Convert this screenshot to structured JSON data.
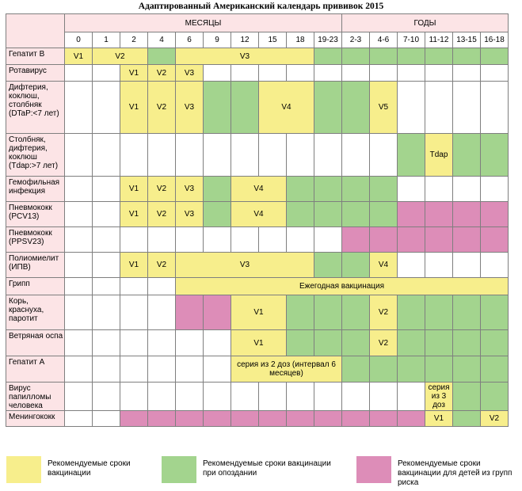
{
  "title": "Адаптированный Американский календарь прививок 2015",
  "header": {
    "months": "МЕСЯЦЫ",
    "years": "ГОДЫ"
  },
  "ages": [
    "0",
    "1",
    "2",
    "4",
    "6",
    "9",
    "12",
    "15",
    "18",
    "19-23",
    "2-3",
    "4-6",
    "7-10",
    "11-12",
    "13-15",
    "16-18"
  ],
  "rows": [
    {
      "label": "Гепатит В",
      "cells": [
        {
          "t": "V1",
          "c": "y",
          "s": 1
        },
        {
          "t": "V2",
          "c": "y",
          "s": 2
        },
        {
          "t": "",
          "c": "g",
          "s": 1
        },
        {
          "t": "V3",
          "c": "y",
          "s": 5
        },
        {
          "t": "",
          "c": "g",
          "s": 1
        },
        {
          "t": "",
          "c": "g",
          "s": 1
        },
        {
          "t": "",
          "c": "g",
          "s": 1
        },
        {
          "t": "",
          "c": "g",
          "s": 1
        },
        {
          "t": "",
          "c": "g",
          "s": 1
        },
        {
          "t": "",
          "c": "g",
          "s": 1
        },
        {
          "t": "",
          "c": "g",
          "s": 1
        }
      ]
    },
    {
      "label": "Ротавирус",
      "cells": [
        {
          "t": "",
          "c": "w",
          "s": 1
        },
        {
          "t": "",
          "c": "w",
          "s": 1
        },
        {
          "t": "V1",
          "c": "y",
          "s": 1
        },
        {
          "t": "V2",
          "c": "y",
          "s": 1
        },
        {
          "t": "V3",
          "c": "y",
          "s": 1
        },
        {
          "t": "",
          "c": "w",
          "s": 1
        },
        {
          "t": "",
          "c": "w",
          "s": 1
        },
        {
          "t": "",
          "c": "w",
          "s": 1
        },
        {
          "t": "",
          "c": "w",
          "s": 1
        },
        {
          "t": "",
          "c": "w",
          "s": 1
        },
        {
          "t": "",
          "c": "w",
          "s": 1
        },
        {
          "t": "",
          "c": "w",
          "s": 1
        },
        {
          "t": "",
          "c": "w",
          "s": 1
        },
        {
          "t": "",
          "c": "w",
          "s": 1
        },
        {
          "t": "",
          "c": "w",
          "s": 1
        },
        {
          "t": "",
          "c": "w",
          "s": 1
        }
      ]
    },
    {
      "label": "Дифтерия, коклюш, столбняк (DTaP:<7 лет)",
      "cells": [
        {
          "t": "",
          "c": "w",
          "s": 1
        },
        {
          "t": "",
          "c": "w",
          "s": 1
        },
        {
          "t": "V1",
          "c": "y",
          "s": 1
        },
        {
          "t": "V2",
          "c": "y",
          "s": 1
        },
        {
          "t": "V3",
          "c": "y",
          "s": 1
        },
        {
          "t": "",
          "c": "g",
          "s": 1
        },
        {
          "t": "",
          "c": "g",
          "s": 1
        },
        {
          "t": "V4",
          "c": "y",
          "s": 2
        },
        {
          "t": "",
          "c": "g",
          "s": 1
        },
        {
          "t": "",
          "c": "g",
          "s": 1
        },
        {
          "t": "V5",
          "c": "y",
          "s": 1
        },
        {
          "t": "",
          "c": "w",
          "s": 1
        },
        {
          "t": "",
          "c": "w",
          "s": 1
        },
        {
          "t": "",
          "c": "w",
          "s": 1
        },
        {
          "t": "",
          "c": "w",
          "s": 1
        }
      ]
    },
    {
      "label": "Столбняк, дифтерия, коклюш (Tdap:>7 лет)",
      "cells": [
        {
          "t": "",
          "c": "w",
          "s": 1
        },
        {
          "t": "",
          "c": "w",
          "s": 1
        },
        {
          "t": "",
          "c": "w",
          "s": 1
        },
        {
          "t": "",
          "c": "w",
          "s": 1
        },
        {
          "t": "",
          "c": "w",
          "s": 1
        },
        {
          "t": "",
          "c": "w",
          "s": 1
        },
        {
          "t": "",
          "c": "w",
          "s": 1
        },
        {
          "t": "",
          "c": "w",
          "s": 1
        },
        {
          "t": "",
          "c": "w",
          "s": 1
        },
        {
          "t": "",
          "c": "w",
          "s": 1
        },
        {
          "t": "",
          "c": "w",
          "s": 1
        },
        {
          "t": "",
          "c": "w",
          "s": 1
        },
        {
          "t": "",
          "c": "g",
          "s": 1
        },
        {
          "t": "Tdap",
          "c": "y",
          "s": 1
        },
        {
          "t": "",
          "c": "g",
          "s": 1
        },
        {
          "t": "",
          "c": "g",
          "s": 1
        }
      ]
    },
    {
      "label": "Гемофильная инфекция",
      "cells": [
        {
          "t": "",
          "c": "w",
          "s": 1
        },
        {
          "t": "",
          "c": "w",
          "s": 1
        },
        {
          "t": "V1",
          "c": "y",
          "s": 1
        },
        {
          "t": "V2",
          "c": "y",
          "s": 1
        },
        {
          "t": "V3",
          "c": "y",
          "s": 1
        },
        {
          "t": "",
          "c": "g",
          "s": 1
        },
        {
          "t": "V4",
          "c": "y",
          "s": 2
        },
        {
          "t": "",
          "c": "g",
          "s": 1
        },
        {
          "t": "",
          "c": "g",
          "s": 1
        },
        {
          "t": "",
          "c": "g",
          "s": 1
        },
        {
          "t": "",
          "c": "g",
          "s": 1
        },
        {
          "t": "",
          "c": "w",
          "s": 1
        },
        {
          "t": "",
          "c": "w",
          "s": 1
        },
        {
          "t": "",
          "c": "w",
          "s": 1
        },
        {
          "t": "",
          "c": "w",
          "s": 1
        }
      ]
    },
    {
      "label": "Пневмококк (PCV13)",
      "cells": [
        {
          "t": "",
          "c": "w",
          "s": 1
        },
        {
          "t": "",
          "c": "w",
          "s": 1
        },
        {
          "t": "V1",
          "c": "y",
          "s": 1
        },
        {
          "t": "V2",
          "c": "y",
          "s": 1
        },
        {
          "t": "V3",
          "c": "y",
          "s": 1
        },
        {
          "t": "",
          "c": "g",
          "s": 1
        },
        {
          "t": "V4",
          "c": "y",
          "s": 2
        },
        {
          "t": "",
          "c": "g",
          "s": 1
        },
        {
          "t": "",
          "c": "g",
          "s": 1
        },
        {
          "t": "",
          "c": "g",
          "s": 1
        },
        {
          "t": "",
          "c": "g",
          "s": 1
        },
        {
          "t": "",
          "c": "p",
          "s": 1
        },
        {
          "t": "",
          "c": "p",
          "s": 1
        },
        {
          "t": "",
          "c": "p",
          "s": 1
        },
        {
          "t": "",
          "c": "p",
          "s": 1
        }
      ]
    },
    {
      "label": "Пневмококк (PPSV23)",
      "cells": [
        {
          "t": "",
          "c": "w",
          "s": 1
        },
        {
          "t": "",
          "c": "w",
          "s": 1
        },
        {
          "t": "",
          "c": "w",
          "s": 1
        },
        {
          "t": "",
          "c": "w",
          "s": 1
        },
        {
          "t": "",
          "c": "w",
          "s": 1
        },
        {
          "t": "",
          "c": "w",
          "s": 1
        },
        {
          "t": "",
          "c": "w",
          "s": 1
        },
        {
          "t": "",
          "c": "w",
          "s": 1
        },
        {
          "t": "",
          "c": "w",
          "s": 1
        },
        {
          "t": "",
          "c": "w",
          "s": 1
        },
        {
          "t": "",
          "c": "p",
          "s": 1
        },
        {
          "t": "",
          "c": "p",
          "s": 1
        },
        {
          "t": "",
          "c": "p",
          "s": 1
        },
        {
          "t": "",
          "c": "p",
          "s": 1
        },
        {
          "t": "",
          "c": "p",
          "s": 1
        },
        {
          "t": "",
          "c": "p",
          "s": 1
        }
      ]
    },
    {
      "label": "Полиомиелит (ИПВ)",
      "cells": [
        {
          "t": "",
          "c": "w",
          "s": 1
        },
        {
          "t": "",
          "c": "w",
          "s": 1
        },
        {
          "t": "V1",
          "c": "y",
          "s": 1
        },
        {
          "t": "V2",
          "c": "y",
          "s": 1
        },
        {
          "t": "V3",
          "c": "y",
          "s": 5
        },
        {
          "t": "",
          "c": "g",
          "s": 1
        },
        {
          "t": "",
          "c": "g",
          "s": 1
        },
        {
          "t": "V4",
          "c": "y",
          "s": 1
        },
        {
          "t": "",
          "c": "w",
          "s": 1
        },
        {
          "t": "",
          "c": "w",
          "s": 1
        },
        {
          "t": "",
          "c": "w",
          "s": 1
        },
        {
          "t": "",
          "c": "w",
          "s": 1
        }
      ]
    },
    {
      "label": "Грипп",
      "cells": [
        {
          "t": "",
          "c": "w",
          "s": 1
        },
        {
          "t": "",
          "c": "w",
          "s": 1
        },
        {
          "t": "",
          "c": "w",
          "s": 1
        },
        {
          "t": "",
          "c": "w",
          "s": 1
        },
        {
          "t": "Ежегодная вакцинация",
          "c": "y",
          "s": 12
        }
      ]
    },
    {
      "label": "Корь, краснуха, паротит",
      "cells": [
        {
          "t": "",
          "c": "w",
          "s": 1
        },
        {
          "t": "",
          "c": "w",
          "s": 1
        },
        {
          "t": "",
          "c": "w",
          "s": 1
        },
        {
          "t": "",
          "c": "w",
          "s": 1
        },
        {
          "t": "",
          "c": "p",
          "s": 1
        },
        {
          "t": "",
          "c": "p",
          "s": 1
        },
        {
          "t": "V1",
          "c": "y",
          "s": 2
        },
        {
          "t": "",
          "c": "g",
          "s": 1
        },
        {
          "t": "",
          "c": "g",
          "s": 1
        },
        {
          "t": "",
          "c": "g",
          "s": 1
        },
        {
          "t": "V2",
          "c": "y",
          "s": 1
        },
        {
          "t": "",
          "c": "g",
          "s": 1
        },
        {
          "t": "",
          "c": "g",
          "s": 1
        },
        {
          "t": "",
          "c": "g",
          "s": 1
        },
        {
          "t": "",
          "c": "g",
          "s": 1
        }
      ]
    },
    {
      "label": "Ветряная оспа",
      "cells": [
        {
          "t": "",
          "c": "w",
          "s": 1
        },
        {
          "t": "",
          "c": "w",
          "s": 1
        },
        {
          "t": "",
          "c": "w",
          "s": 1
        },
        {
          "t": "",
          "c": "w",
          "s": 1
        },
        {
          "t": "",
          "c": "w",
          "s": 1
        },
        {
          "t": "",
          "c": "w",
          "s": 1
        },
        {
          "t": "V1",
          "c": "y",
          "s": 2
        },
        {
          "t": "",
          "c": "g",
          "s": 1
        },
        {
          "t": "",
          "c": "g",
          "s": 1
        },
        {
          "t": "",
          "c": "g",
          "s": 1
        },
        {
          "t": "V2",
          "c": "y",
          "s": 1
        },
        {
          "t": "",
          "c": "g",
          "s": 1
        },
        {
          "t": "",
          "c": "g",
          "s": 1
        },
        {
          "t": "",
          "c": "g",
          "s": 1
        },
        {
          "t": "",
          "c": "g",
          "s": 1
        }
      ]
    },
    {
      "label": "Гепатит А",
      "cells": [
        {
          "t": "",
          "c": "w",
          "s": 1
        },
        {
          "t": "",
          "c": "w",
          "s": 1
        },
        {
          "t": "",
          "c": "w",
          "s": 1
        },
        {
          "t": "",
          "c": "w",
          "s": 1
        },
        {
          "t": "",
          "c": "w",
          "s": 1
        },
        {
          "t": "",
          "c": "w",
          "s": 1
        },
        {
          "t": "серия из 2 доз (интервал 6 месяцев)",
          "c": "y",
          "s": 4
        },
        {
          "t": "",
          "c": "g",
          "s": 1
        },
        {
          "t": "",
          "c": "g",
          "s": 1
        },
        {
          "t": "",
          "c": "g",
          "s": 1
        },
        {
          "t": "",
          "c": "g",
          "s": 1
        },
        {
          "t": "",
          "c": "g",
          "s": 1
        },
        {
          "t": "",
          "c": "g",
          "s": 1
        }
      ]
    },
    {
      "label": "Вирус папилломы человека",
      "cells": [
        {
          "t": "",
          "c": "w",
          "s": 1
        },
        {
          "t": "",
          "c": "w",
          "s": 1
        },
        {
          "t": "",
          "c": "w",
          "s": 1
        },
        {
          "t": "",
          "c": "w",
          "s": 1
        },
        {
          "t": "",
          "c": "w",
          "s": 1
        },
        {
          "t": "",
          "c": "w",
          "s": 1
        },
        {
          "t": "",
          "c": "w",
          "s": 1
        },
        {
          "t": "",
          "c": "w",
          "s": 1
        },
        {
          "t": "",
          "c": "w",
          "s": 1
        },
        {
          "t": "",
          "c": "w",
          "s": 1
        },
        {
          "t": "",
          "c": "w",
          "s": 1
        },
        {
          "t": "",
          "c": "w",
          "s": 1
        },
        {
          "t": "",
          "c": "w",
          "s": 1
        },
        {
          "t": "серия из 3 доз",
          "c": "y",
          "s": 1
        },
        {
          "t": "",
          "c": "g",
          "s": 1
        },
        {
          "t": "",
          "c": "g",
          "s": 1
        }
      ]
    },
    {
      "label": "Менингококк",
      "cells": [
        {
          "t": "",
          "c": "w",
          "s": 1
        },
        {
          "t": "",
          "c": "w",
          "s": 1
        },
        {
          "t": "",
          "c": "p",
          "s": 1
        },
        {
          "t": "",
          "c": "p",
          "s": 1
        },
        {
          "t": "",
          "c": "p",
          "s": 1
        },
        {
          "t": "",
          "c": "p",
          "s": 1
        },
        {
          "t": "",
          "c": "p",
          "s": 1
        },
        {
          "t": "",
          "c": "p",
          "s": 1
        },
        {
          "t": "",
          "c": "p",
          "s": 1
        },
        {
          "t": "",
          "c": "p",
          "s": 1
        },
        {
          "t": "",
          "c": "p",
          "s": 1
        },
        {
          "t": "",
          "c": "p",
          "s": 1
        },
        {
          "t": "",
          "c": "p",
          "s": 1
        },
        {
          "t": "V1",
          "c": "y",
          "s": 1
        },
        {
          "t": "",
          "c": "g",
          "s": 1
        },
        {
          "t": "V2",
          "c": "y",
          "s": 1
        }
      ]
    }
  ],
  "legend": [
    {
      "text": "Рекомендуемые сроки вакцинации",
      "color": "#f7ee8c"
    },
    {
      "text": "Рекомендуемые сроки вакцинации при опоздании",
      "color": "#a3d48e"
    },
    {
      "text": "Рекомендуемые сроки вакцинации для детей из групп риска",
      "color": "#dd8db8"
    }
  ]
}
